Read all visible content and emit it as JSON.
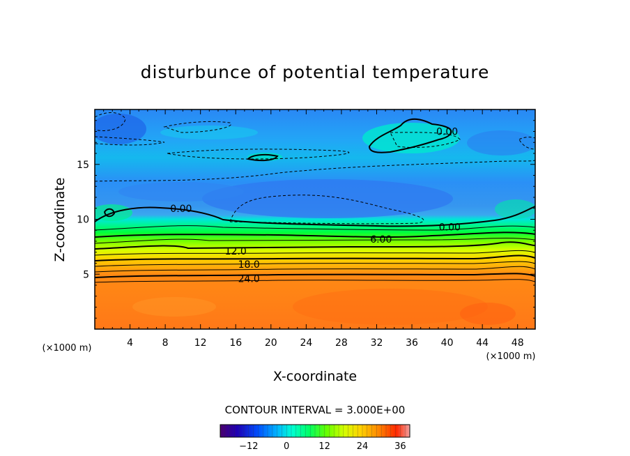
{
  "chart_data": {
    "type": "heatmap",
    "title": "disturbunce of potential temperature",
    "xlabel": "X-coordinate",
    "ylabel": "Z-coordinate",
    "x_unit": "(×1000 m)",
    "x_unit_right": "(×1000 m)",
    "xlim": [
      0,
      50
    ],
    "ylim": [
      0,
      20
    ],
    "x_ticks": [
      4,
      8,
      12,
      16,
      20,
      24,
      28,
      32,
      36,
      40,
      44,
      48
    ],
    "y_ticks": [
      5,
      10,
      15
    ],
    "contour_interval_text": "CONTOUR INTERVAL = 3.000E+00",
    "contour_interval": 3.0,
    "contour_labels": [
      {
        "text": "0.00",
        "x": 9.8,
        "z": 11.0
      },
      {
        "text": "0.00",
        "x": 40.0,
        "z": 18.0
      },
      {
        "text": "0.00",
        "x": 40.3,
        "z": 9.3
      },
      {
        "text": "6.00",
        "x": 32.5,
        "z": 8.2
      },
      {
        "text": "12.0",
        "x": 16.0,
        "z": 7.1
      },
      {
        "text": "18.0",
        "x": 17.5,
        "z": 5.9
      },
      {
        "text": "24.0",
        "x": 17.5,
        "z": 4.6
      }
    ],
    "field_bands": [
      {
        "z_range": [
          0,
          4.3
        ],
        "value_range": [
          27,
          33
        ],
        "note": "near-surface"
      },
      {
        "z_range": [
          4.3,
          8.8
        ],
        "value_range": [
          3,
          27
        ]
      },
      {
        "z_range": [
          8.8,
          20
        ],
        "value_range": [
          -6,
          3
        ]
      }
    ],
    "colorbar": {
      "ticks": [
        -12,
        0,
        12,
        24,
        36
      ],
      "range": [
        -21,
        39
      ],
      "colors": [
        "#4b006e",
        "#1e00b4",
        "#0050ff",
        "#00b4ff",
        "#00ffd2",
        "#00ff64",
        "#64ff00",
        "#d2ff00",
        "#ffd200",
        "#ff8c00",
        "#ff2800",
        "#f0a0a0"
      ]
    }
  }
}
